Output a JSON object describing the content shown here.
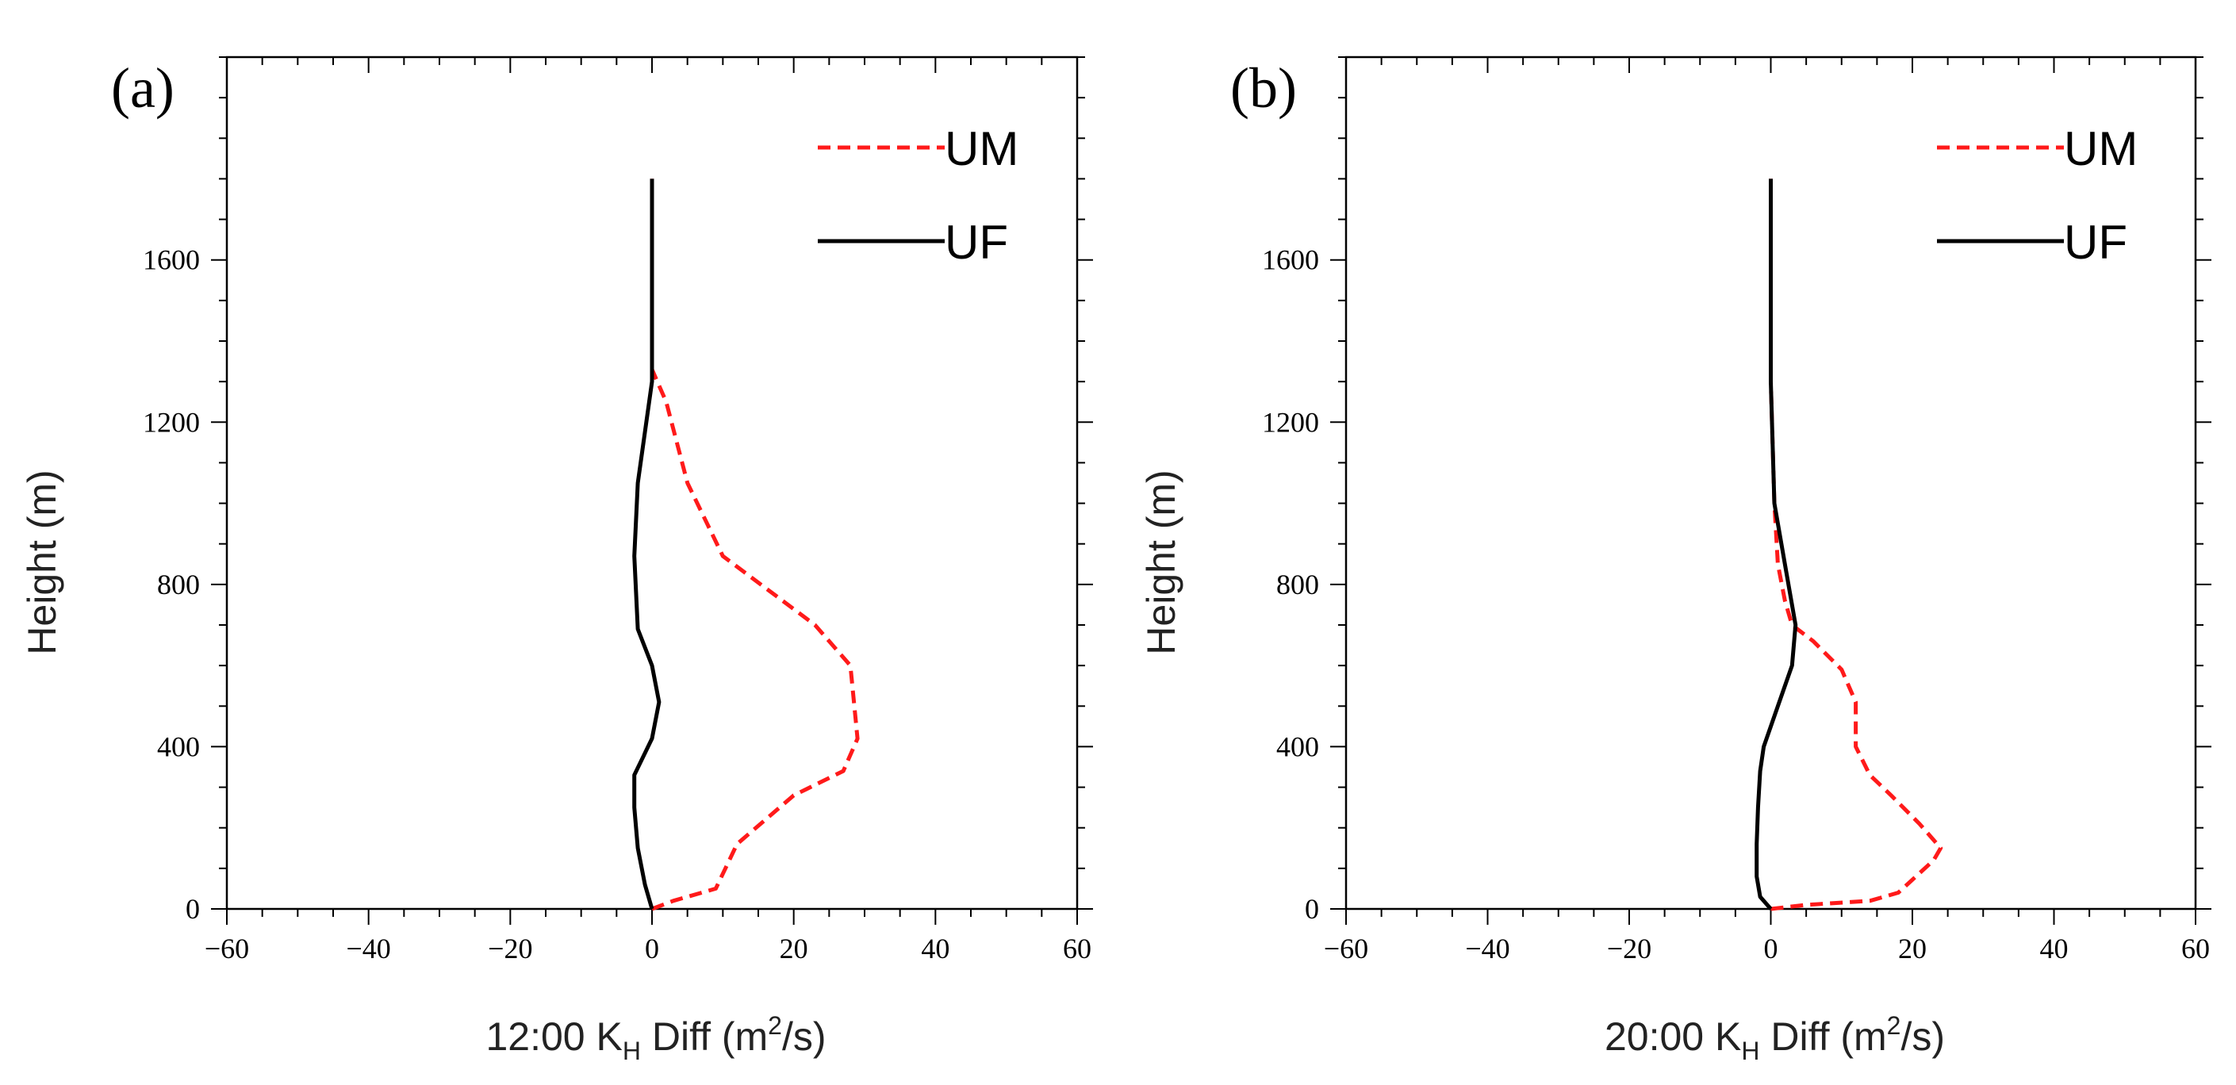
{
  "chart_data": [
    {
      "type": "line",
      "panel_label": "(a)",
      "xlabel_prefix": "12:00 K",
      "xlabel_sub": "H",
      "xlabel_mid": " Diff (m",
      "xlabel_sup": "2",
      "xlabel_suffix": "/s)",
      "ylabel": "Height (m)",
      "xlim": [
        -60,
        60
      ],
      "ylim": [
        0,
        2100
      ],
      "xticks": [
        -60,
        -40,
        -20,
        0,
        20,
        40,
        60
      ],
      "yticks": [
        0,
        400,
        800,
        1200,
        1600
      ],
      "xtick_labels": [
        "−60",
        "−40",
        "−20",
        "0",
        "20",
        "40",
        "60"
      ],
      "ytick_labels": [
        "0",
        "400",
        "800",
        "1200",
        "1600"
      ],
      "legend_position": "top-right",
      "series": [
        {
          "name": "UM",
          "color": "#ff1a1a",
          "style": "dashed",
          "x": [
            0,
            3,
            9,
            12,
            20,
            27,
            29,
            28,
            23,
            10,
            5,
            2,
            0,
            0
          ],
          "y": [
            0,
            20,
            50,
            160,
            280,
            340,
            420,
            600,
            700,
            870,
            1050,
            1250,
            1330,
            1800
          ]
        },
        {
          "name": "UF",
          "color": "#000000",
          "style": "solid",
          "x": [
            0,
            -1,
            -2,
            -2.5,
            -2.5,
            0,
            1,
            0,
            -2,
            -2.5,
            -2,
            0,
            0
          ],
          "y": [
            0,
            60,
            150,
            250,
            330,
            420,
            510,
            600,
            690,
            870,
            1050,
            1300,
            1800
          ]
        }
      ]
    },
    {
      "type": "line",
      "panel_label": "(b)",
      "xlabel_prefix": "20:00 K",
      "xlabel_sub": "H",
      "xlabel_mid": " Diff (m",
      "xlabel_sup": "2",
      "xlabel_suffix": "/s)",
      "ylabel": "Height (m)",
      "xlim": [
        -60,
        60
      ],
      "ylim": [
        0,
        2100
      ],
      "xticks": [
        -60,
        -40,
        -20,
        0,
        20,
        40,
        60
      ],
      "yticks": [
        0,
        400,
        800,
        1200,
        1600
      ],
      "xtick_labels": [
        "−60",
        "−40",
        "−20",
        "0",
        "20",
        "40",
        "60"
      ],
      "ytick_labels": [
        "0",
        "400",
        "800",
        "1200",
        "1600"
      ],
      "legend_position": "top-right",
      "series": [
        {
          "name": "UM",
          "color": "#ff1a1a",
          "style": "dashed",
          "x": [
            0,
            5,
            14,
            18,
            23,
            24,
            21,
            17,
            14,
            12,
            12,
            10,
            6,
            3,
            2,
            1,
            0.5,
            0,
            0
          ],
          "y": [
            0,
            10,
            20,
            40,
            120,
            150,
            210,
            280,
            330,
            400,
            510,
            590,
            660,
            700,
            760,
            850,
            1000,
            1300,
            1800
          ]
        },
        {
          "name": "UF",
          "color": "#000000",
          "style": "solid",
          "x": [
            0,
            -1.5,
            -2,
            -2,
            -1.8,
            -1.5,
            -1,
            1,
            3,
            3.5,
            2,
            0.5,
            0,
            0
          ],
          "y": [
            0,
            30,
            80,
            160,
            250,
            340,
            400,
            500,
            600,
            700,
            850,
            1000,
            1300,
            1800
          ]
        }
      ]
    }
  ]
}
